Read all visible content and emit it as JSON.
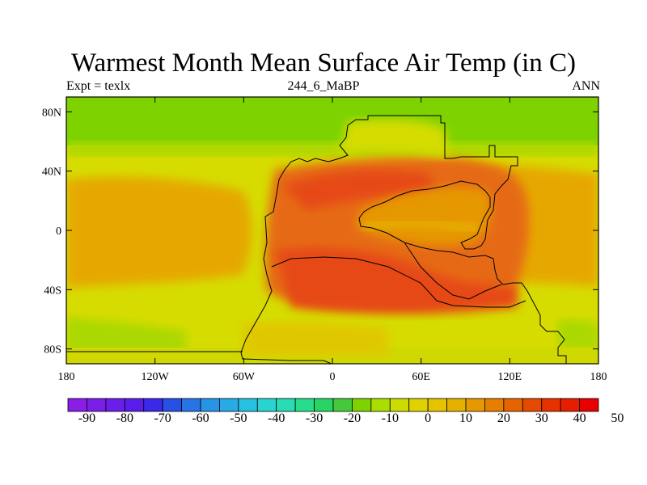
{
  "figure": {
    "title": "Warmest Month Mean Surface Air Temp (in C)",
    "left_string": "Expt = texlx",
    "center_string": "244_6_MaBP",
    "right_string": "ANN"
  },
  "map": {
    "projection": "cylindrical-equidistant",
    "lon_range": [
      -180,
      180
    ],
    "lat_range": [
      -90,
      90
    ],
    "lon_ticks": [
      {
        "value": -180,
        "label": "180"
      },
      {
        "value": -120,
        "label": "120W"
      },
      {
        "value": -60,
        "label": "60W"
      },
      {
        "value": 0,
        "label": "0"
      },
      {
        "value": 60,
        "label": "60E"
      },
      {
        "value": 120,
        "label": "120E"
      },
      {
        "value": 180,
        "label": "180"
      }
    ],
    "lat_ticks": [
      {
        "value": 80,
        "label": "80N"
      },
      {
        "value": 40,
        "label": "40N"
      },
      {
        "value": 0,
        "label": "0"
      },
      {
        "value": -40,
        "label": "40S"
      },
      {
        "value": -80,
        "label": "80S"
      }
    ],
    "outline": "pangaea-coastline",
    "field_description": "surface air temperature, warmest month mean"
  },
  "colorbar": {
    "levels": [
      -90,
      -80,
      -70,
      -60,
      -50,
      -40,
      -30,
      -20,
      -10,
      0,
      10,
      20,
      30,
      40,
      50
    ],
    "labels": [
      "-90",
      "-80",
      "-70",
      "-60",
      "-50",
      "-40",
      "-30",
      "-20",
      "-10",
      "0",
      "10",
      "20",
      "30",
      "40",
      "50"
    ],
    "colors": [
      "#8a1ee6",
      "#7a1ee8",
      "#6a1eea",
      "#5a1eec",
      "#3c28e8",
      "#2850e6",
      "#2874e6",
      "#2894e6",
      "#28aae6",
      "#28c0e0",
      "#28d4d0",
      "#28dcb4",
      "#28dc8c",
      "#28d464",
      "#46c83c",
      "#7ed200",
      "#aade00",
      "#ccdc00",
      "#e0d200",
      "#e6c300",
      "#e6b000",
      "#e69800",
      "#e67e00",
      "#e66400",
      "#e64a00",
      "#e63200",
      "#e61e00",
      "#e60000"
    ]
  },
  "style": {
    "cold_green": "#7ed200",
    "mid_yellow": "#d4dc00",
    "warm_orange": "#e6a000",
    "hot_red": "#e64a14",
    "coastline": "#000000"
  }
}
